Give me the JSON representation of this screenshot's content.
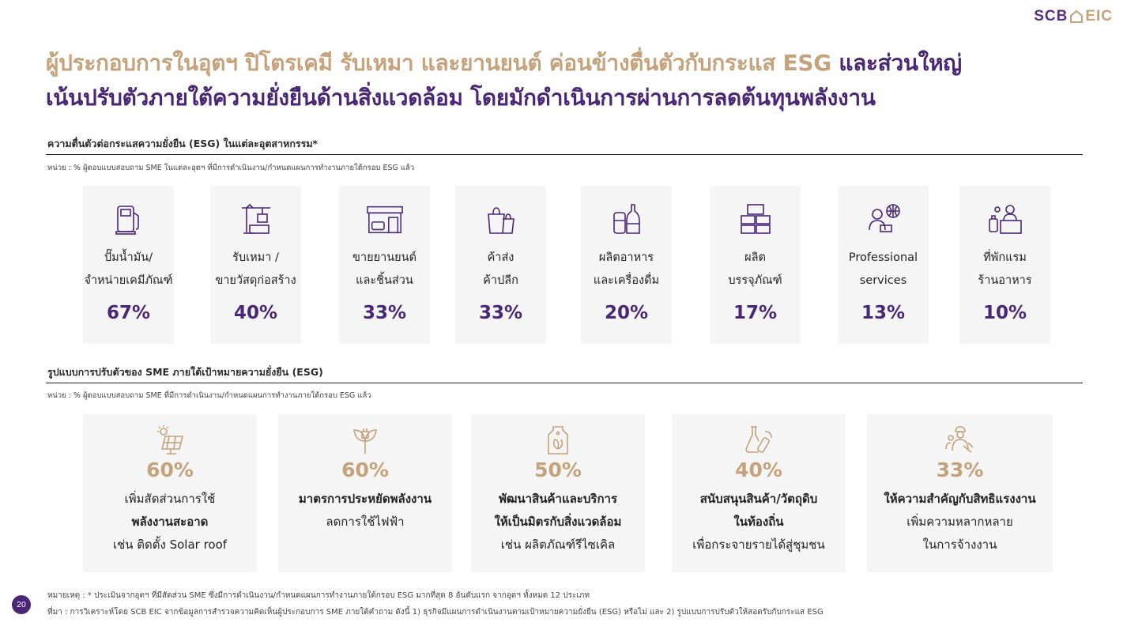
{
  "logo": {
    "scb": "SCB",
    "eic": "EIC"
  },
  "headline": {
    "line1_gold": "ผู้ประกอบการในอุตฯ ปิโตรเคมี รับเหมา และยานยนต์ ค่อนข้างตื่นตัวกับกระแส ESG",
    "line1_purple": " และส่วนใหญ่",
    "line2_purple": "เน้นปรับตัวภายใต้ความยั่งยืนด้านสิ่งแวดล้อม โดยมักดำเนินการผ่านการลดต้นทุนพลังงาน"
  },
  "section1": {
    "title": "ความตื่นตัวต่อกระแสความยั่งยืน (ESG) ในแต่ละอุตสาหกรรม*",
    "unit": "หน่วย : % ผู้ตอบแบบสอบถาม SME ในแต่ละอุตฯ ที่มีการดำเนินงาน/กำหนดแผนการทำงานภายใต้กรอบ ESG แล้ว",
    "industries": [
      {
        "icon": "fuel-pump-icon",
        "line1": "ปั๊มน้ำมัน/",
        "line2": "จำหน่ายเคมีภัณฑ์",
        "pct": "67%"
      },
      {
        "icon": "construction-crane-icon",
        "line1": "รับเหมา /",
        "line2": "ขายวัสดุก่อสร้าง",
        "pct": "40%"
      },
      {
        "icon": "car-dealership-icon",
        "line1": "ขายยานยนต์",
        "line2": "และชิ้นส่วน",
        "pct": "33%"
      },
      {
        "icon": "shopping-bags-icon",
        "line1": "ค้าส่ง",
        "line2": "ค้าปลีก",
        "pct": "33%"
      },
      {
        "icon": "food-beverage-icon",
        "line1": "ผลิตอาหาร",
        "line2": "และเครื่องดื่ม",
        "pct": "20%"
      },
      {
        "icon": "packaging-boxes-icon",
        "line1": "ผลิต",
        "line2": "บรรจุภัณฑ์",
        "pct": "17%"
      },
      {
        "icon": "professional-globe-icon",
        "line1": "Professional",
        "line2": "services",
        "pct": "13%"
      },
      {
        "icon": "hotel-reception-icon",
        "line1": "ที่พักแรม",
        "line2": "ร้านอาหาร",
        "pct": "10%"
      }
    ]
  },
  "section2": {
    "title": "รูปแบบการปรับตัวของ SME ภายใต้เป้าหมายความยั่งยืน (ESG)",
    "unit": "หน่วย : % ผู้ตอบแบบสอบถาม SME ที่มีการดำเนินงาน/กำหนดแผนการทำงานภายใต้กรอบ ESG แล้ว",
    "adaptations": [
      {
        "icon": "solar-panel-icon",
        "pct": "60%",
        "line1": "เพิ่มสัดส่วนการใช้",
        "line2": "พลังงานสะอาด",
        "line3": "เช่น ติดตั้ง Solar roof"
      },
      {
        "icon": "eco-plug-icon",
        "pct": "60%",
        "line1": "มาตรการประหยัดพลังงาน",
        "line2": "ลดการใช้ไฟฟ้า",
        "line3": ""
      },
      {
        "icon": "eco-product-tag-icon",
        "pct": "50%",
        "line1": "พัฒนาสินค้าและบริการ",
        "line2": "ให้เป็นมิตรกับสิ่งแวดล้อม",
        "line3": "เช่น ผลิตภัณฑ์รีไซเคิล"
      },
      {
        "icon": "local-materials-icon",
        "pct": "40%",
        "line1": "สนับสนุนสินค้า/วัตถุดิบ",
        "line2": "ในท้องถิ่น",
        "line3": "เพื่อกระจายรายได้สู่ชุมชน"
      },
      {
        "icon": "workers-diversity-icon",
        "pct": "33%",
        "line1": "ให้ความสำคัญกับสิทธิแรงงาน",
        "line2": "เพิ่มความหลากหลาย",
        "line3": "ในการจ้างงาน"
      }
    ]
  },
  "footer": {
    "note": "หมายเหตุ : * ประเมินจากอุตฯ ที่มีสัดส่วน SME ซึ่งมีการดำเนินงาน/กำหนดแผนการทำงานภายใต้กรอบ ESG มากที่สุด 8 อันดับแรก จากอุตฯ ทั้งหมด 12 ประเภท",
    "source": "ที่มา : การวิเคราะห์โดย SCB EIC จากข้อมูลการสำรวจความคิดเห็นผู้ประกอบการ SME ภายใต้คำถาม ดังนี้ 1) ธุรกิจมีแผนการดำเนินงานตามเป้าหมายความยั่งยืน (ESG) หรือไม่ และ 2) รูปแบบการปรับตัวให้สอดรับกับกระแส ESG",
    "page": "20"
  },
  "colors": {
    "gold": "#c6a27a",
    "purple": "#4a2677",
    "card_bg": "#f5f5f5"
  }
}
